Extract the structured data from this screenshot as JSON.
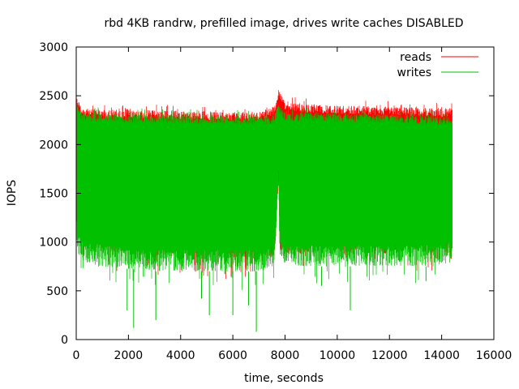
{
  "chart_data": {
    "type": "line",
    "title": "rbd 4KB randrw, prefilled image, drives write caches DISABLED",
    "xlabel": "time, seconds",
    "ylabel": "IOPS",
    "xlim": [
      0,
      16000
    ],
    "ylim": [
      0,
      3000
    ],
    "x_ticks": [
      0,
      2000,
      4000,
      6000,
      8000,
      10000,
      12000,
      14000,
      16000
    ],
    "y_ticks": [
      0,
      500,
      1000,
      1500,
      2000,
      2500,
      3000
    ],
    "grid": false,
    "legend_position": "top-right",
    "data_end_x": 14400,
    "series": [
      {
        "name": "reads",
        "color": "#ff0000",
        "envelope": {
          "x": [
            0,
            50,
            200,
            1000,
            3000,
            5000,
            7000,
            7600,
            7750,
            7800,
            8000,
            10000,
            12000,
            14000,
            14400
          ],
          "upper": [
            2600,
            2480,
            2380,
            2360,
            2350,
            2340,
            2330,
            2400,
            2570,
            2560,
            2430,
            2400,
            2390,
            2370,
            2380
          ],
          "lower": [
            1100,
            1050,
            950,
            900,
            850,
            820,
            820,
            850,
            1600,
            900,
            880,
            880,
            880,
            880,
            820
          ]
        }
      },
      {
        "name": "writes",
        "color": "#00c000",
        "envelope": {
          "x": [
            0,
            50,
            200,
            1000,
            3000,
            5000,
            7000,
            7600,
            7750,
            7800,
            8000,
            10000,
            12000,
            14000,
            14400
          ],
          "upper": [
            2450,
            2400,
            2330,
            2320,
            2310,
            2300,
            2290,
            2300,
            2420,
            2400,
            2330,
            2320,
            2310,
            2290,
            2280
          ],
          "lower": [
            1000,
            900,
            800,
            750,
            700,
            700,
            700,
            750,
            1600,
            800,
            750,
            750,
            750,
            750,
            800
          ]
        },
        "spikes_down": [
          {
            "x": 2200,
            "y": 120
          },
          {
            "x": 3050,
            "y": 200
          },
          {
            "x": 5100,
            "y": 250
          },
          {
            "x": 6000,
            "y": 250
          },
          {
            "x": 6600,
            "y": 350
          },
          {
            "x": 6900,
            "y": 80
          },
          {
            "x": 4800,
            "y": 420
          },
          {
            "x": 1950,
            "y": 300
          },
          {
            "x": 10500,
            "y": 300
          },
          {
            "x": 9400,
            "y": 550
          },
          {
            "x": 13400,
            "y": 600
          }
        ]
      }
    ]
  }
}
